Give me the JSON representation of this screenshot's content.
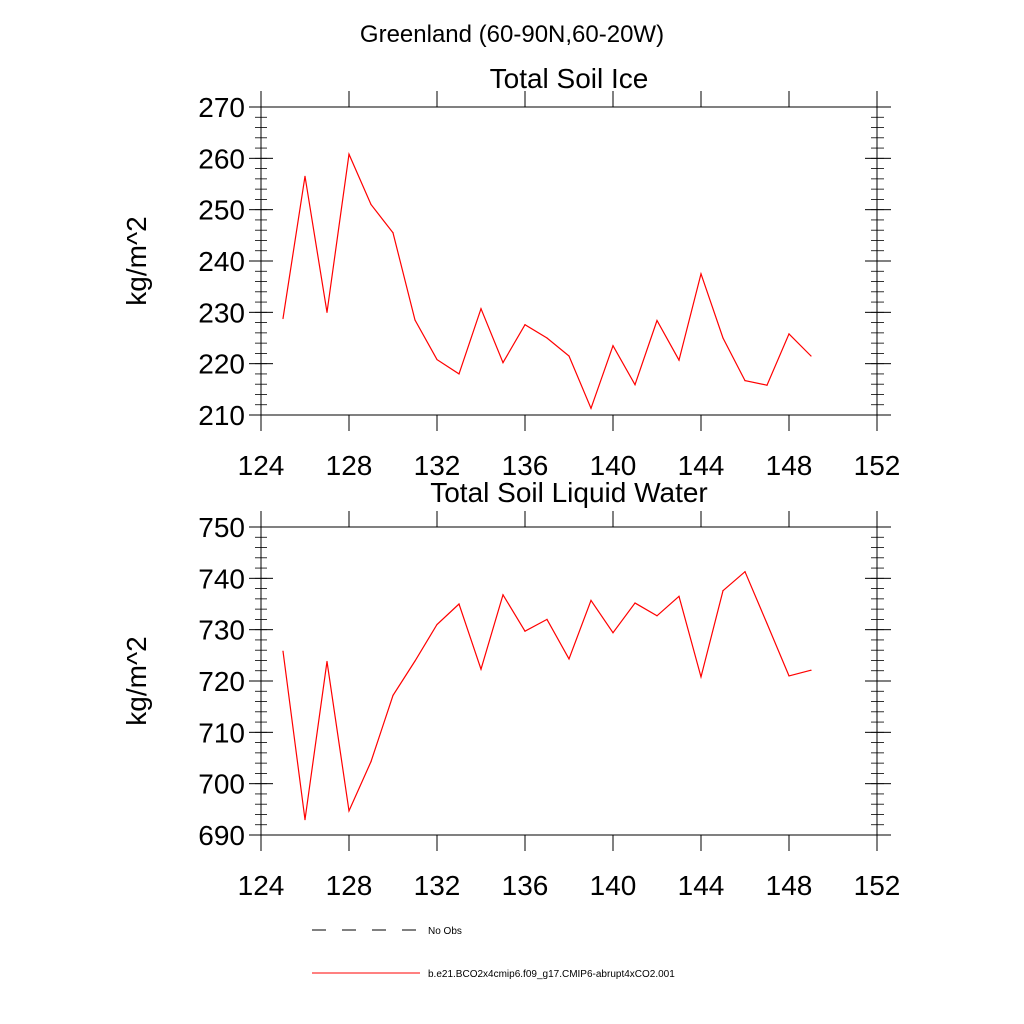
{
  "page_title": "Greenland (60-90N,60-20W)",
  "colors": {
    "model_line": "#ff0000",
    "obs_line": "#000000",
    "axis": "#000000"
  },
  "legend": [
    {
      "label": "No Obs",
      "style": "dashed",
      "color": "#000000"
    },
    {
      "label": "b.e21.BCO2x4cmip6.f09_g17.CMIP6-abrupt4xCO2.001",
      "style": "solid",
      "color": "#ff0000"
    }
  ],
  "chart_data": [
    {
      "type": "line",
      "title": "Total Soil Ice",
      "xlabel": "",
      "ylabel": "kg/m^2",
      "xlim": [
        124,
        152
      ],
      "ylim": [
        210,
        270
      ],
      "xticks": [
        124,
        128,
        132,
        136,
        140,
        144,
        148,
        152
      ],
      "yticks": [
        210,
        220,
        230,
        240,
        250,
        260,
        270
      ],
      "grid": false,
      "series": [
        {
          "color": "#ff0000",
          "x": [
            125,
            126,
            127,
            128,
            129,
            130,
            131,
            132,
            133,
            134,
            135,
            136,
            137,
            138,
            139,
            140,
            141,
            142,
            143,
            144,
            145,
            146,
            147,
            148,
            149
          ],
          "y": [
            228.8,
            256.5,
            230.0,
            260.8,
            251.0,
            245.5,
            228.5,
            220.8,
            218.0,
            230.7,
            220.2,
            227.6,
            225.0,
            221.5,
            211.3,
            223.5,
            215.9,
            228.4,
            220.7,
            237.5,
            225.0,
            216.7,
            215.8,
            225.8,
            221.5
          ]
        }
      ]
    },
    {
      "type": "line",
      "title": "Total Soil Liquid Water",
      "xlabel": "",
      "ylabel": "kg/m^2",
      "xlim": [
        124,
        152
      ],
      "ylim": [
        690,
        750
      ],
      "xticks": [
        124,
        128,
        132,
        136,
        140,
        144,
        148,
        152
      ],
      "yticks": [
        690,
        700,
        710,
        720,
        730,
        740,
        750
      ],
      "grid": false,
      "series": [
        {
          "color": "#ff0000",
          "x": [
            125,
            126,
            127,
            128,
            129,
            130,
            131,
            132,
            133,
            134,
            135,
            136,
            137,
            138,
            139,
            140,
            141,
            142,
            143,
            144,
            145,
            146,
            147,
            148,
            149
          ],
          "y": [
            725.8,
            693.0,
            723.8,
            694.7,
            704.3,
            717.2,
            723.9,
            731.0,
            735.0,
            722.3,
            736.8,
            729.7,
            732.0,
            724.3,
            735.7,
            729.4,
            735.2,
            732.7,
            736.5,
            720.8,
            737.6,
            741.3,
            731.2,
            721.0,
            722.1
          ]
        }
      ]
    }
  ]
}
